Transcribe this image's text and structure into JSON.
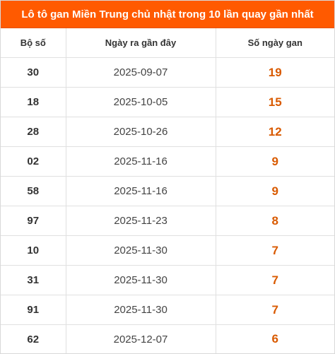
{
  "title": "Lô tô gan Miền Trung chủ nhật trong 10 lần quay gần nhất",
  "columns": {
    "number": "Bộ số",
    "date": "Ngày ra gần đây",
    "gap": "Số ngày gan"
  },
  "colors": {
    "header_bg": "#ff5a00",
    "gap_value": "#d95a00"
  },
  "rows": [
    {
      "number": "30",
      "date": "2025-09-07",
      "gap": "19"
    },
    {
      "number": "18",
      "date": "2025-10-05",
      "gap": "15"
    },
    {
      "number": "28",
      "date": "2025-10-26",
      "gap": "12"
    },
    {
      "number": "02",
      "date": "2025-11-16",
      "gap": "9"
    },
    {
      "number": "58",
      "date": "2025-11-16",
      "gap": "9"
    },
    {
      "number": "97",
      "date": "2025-11-23",
      "gap": "8"
    },
    {
      "number": "10",
      "date": "2025-11-30",
      "gap": "7"
    },
    {
      "number": "31",
      "date": "2025-11-30",
      "gap": "7"
    },
    {
      "number": "91",
      "date": "2025-11-30",
      "gap": "7"
    },
    {
      "number": "62",
      "date": "2025-12-07",
      "gap": "6"
    }
  ]
}
